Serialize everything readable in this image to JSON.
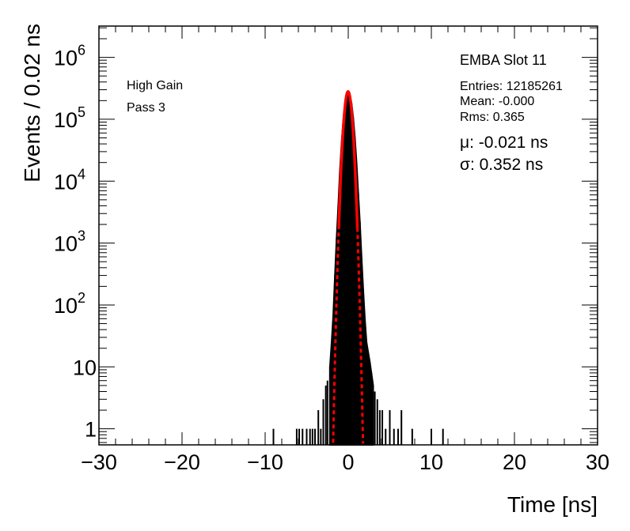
{
  "chart_data": {
    "type": "histogram",
    "xlabel": "Time [ns]",
    "ylabel": "Events / 0.02 ns",
    "xlim": [
      -30,
      30
    ],
    "ylim": [
      0.55,
      3200000
    ],
    "yscale": "log",
    "x_ticks": [
      -30,
      -20,
      -10,
      0,
      10,
      20,
      30
    ],
    "x_tick_labels": [
      "−30",
      "−20",
      "−10",
      "0",
      "10",
      "20",
      "30"
    ],
    "y_ticks": [
      {
        "value": 1,
        "base": "1",
        "exp": ""
      },
      {
        "value": 10,
        "base": "10",
        "exp": ""
      },
      {
        "value": 100,
        "base": "10",
        "exp": "2"
      },
      {
        "value": 1000,
        "base": "10",
        "exp": "3"
      },
      {
        "value": 10000,
        "base": "10",
        "exp": "4"
      },
      {
        "value": 100000,
        "base": "10",
        "exp": "5"
      },
      {
        "value": 1000000,
        "base": "10",
        "exp": "6"
      }
    ],
    "labels": {
      "gain": "High Gain",
      "pass": "Pass 3",
      "module": "EMBA Slot 11"
    },
    "stats": {
      "entries": "Entries: 12185261",
      "mean": "Mean: -0.000",
      "rms": "Rms: 0.365"
    },
    "fit": {
      "mu_label": "μ: -0.021 ns",
      "sigma_label": "σ: 0.352 ns",
      "mu": -0.021,
      "sigma": 0.352,
      "peak": 280000,
      "color": "#ff0000"
    },
    "histogram": {
      "color": "#000000",
      "core": [
        {
          "x": -2.2,
          "y": 10
        },
        {
          "x": -2.0,
          "y": 25
        },
        {
          "x": -1.8,
          "y": 70
        },
        {
          "x": -1.6,
          "y": 300
        },
        {
          "x": -1.4,
          "y": 1200
        },
        {
          "x": -1.2,
          "y": 4000
        },
        {
          "x": -1.0,
          "y": 15000
        },
        {
          "x": -0.8,
          "y": 42000
        },
        {
          "x": -0.6,
          "y": 95000
        },
        {
          "x": -0.4,
          "y": 170000
        },
        {
          "x": -0.2,
          "y": 245000
        },
        {
          "x": 0.0,
          "y": 280000
        },
        {
          "x": 0.2,
          "y": 250000
        },
        {
          "x": 0.4,
          "y": 180000
        },
        {
          "x": 0.6,
          "y": 105000
        },
        {
          "x": 0.8,
          "y": 50000
        },
        {
          "x": 1.0,
          "y": 20000
        },
        {
          "x": 1.2,
          "y": 6500
        },
        {
          "x": 1.4,
          "y": 2200
        },
        {
          "x": 1.6,
          "y": 600
        },
        {
          "x": 1.8,
          "y": 180
        },
        {
          "x": 2.0,
          "y": 60
        },
        {
          "x": 2.2,
          "y": 25
        },
        {
          "x": 2.6,
          "y": 12
        },
        {
          "x": 3.0,
          "y": 5
        }
      ],
      "sparse": [
        {
          "x": -9.0,
          "y": 1
        },
        {
          "x": -6.2,
          "y": 1
        },
        {
          "x": -5.9,
          "y": 1
        },
        {
          "x": -5.5,
          "y": 1
        },
        {
          "x": -5.0,
          "y": 1
        },
        {
          "x": -4.6,
          "y": 1
        },
        {
          "x": -4.3,
          "y": 1
        },
        {
          "x": -4.0,
          "y": 1
        },
        {
          "x": -3.6,
          "y": 2
        },
        {
          "x": -3.3,
          "y": 1
        },
        {
          "x": -3.0,
          "y": 3
        },
        {
          "x": -2.7,
          "y": 5
        },
        {
          "x": -2.5,
          "y": 6
        },
        {
          "x": 2.8,
          "y": 8
        },
        {
          "x": 3.2,
          "y": 4
        },
        {
          "x": 3.5,
          "y": 3
        },
        {
          "x": 3.8,
          "y": 2
        },
        {
          "x": 4.1,
          "y": 2
        },
        {
          "x": 4.5,
          "y": 1
        },
        {
          "x": 5.0,
          "y": 2
        },
        {
          "x": 5.5,
          "y": 1
        },
        {
          "x": 6.0,
          "y": 1
        },
        {
          "x": 6.4,
          "y": 2
        },
        {
          "x": 7.7,
          "y": 1
        },
        {
          "x": 10.0,
          "y": 1
        },
        {
          "x": 11.4,
          "y": 1
        }
      ]
    }
  }
}
